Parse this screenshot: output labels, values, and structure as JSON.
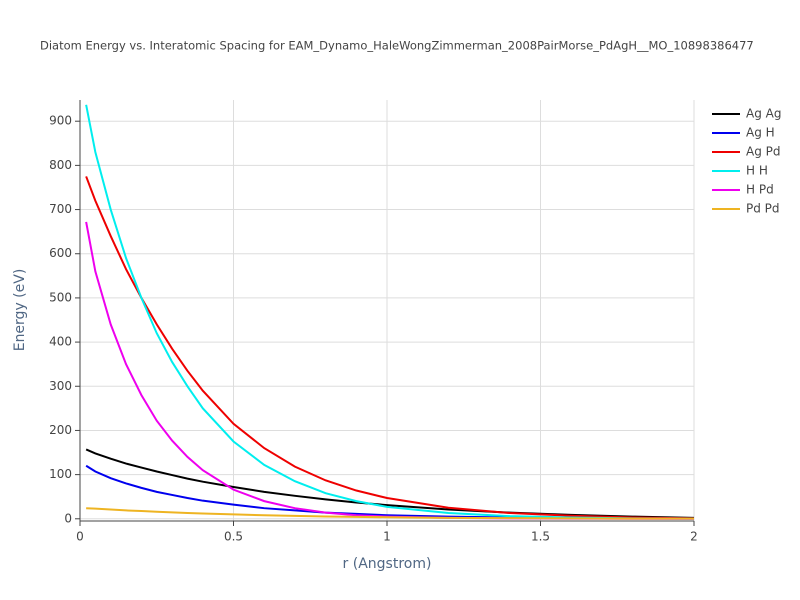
{
  "chart_data": {
    "type": "line",
    "title": "Diatom Energy vs. Interatomic Spacing for EAM_Dynamo_HaleWongZimmerman_2008PairMorse_PdAgH__MO_10898386477",
    "x_label": "r (Angstrom)",
    "y_label": "Energy (eV)",
    "x": [
      0.02,
      0.05,
      0.1,
      0.15,
      0.2,
      0.25,
      0.3,
      0.35,
      0.4,
      0.5,
      0.6,
      0.7,
      0.8,
      0.9,
      1.0,
      1.2,
      1.4,
      1.6,
      1.8,
      2.0
    ],
    "series": [
      {
        "name": "Ag Ag",
        "color": "#000000",
        "values": [
          157,
          148,
          136,
          125,
          116,
          107,
          99,
          91,
          84,
          72,
          61,
          52,
          44,
          37,
          31,
          21,
          14,
          9,
          5,
          2
        ]
      },
      {
        "name": "Ag H",
        "color": "#0000ee",
        "values": [
          120,
          107,
          92,
          80,
          70,
          61,
          54,
          47,
          41,
          32,
          24,
          19,
          14,
          11,
          8,
          5,
          3,
          1.5,
          0.8,
          0.4
        ]
      },
      {
        "name": "Ag Pd",
        "color": "#ee0000",
        "values": [
          775,
          720,
          640,
          565,
          500,
          440,
          385,
          335,
          290,
          215,
          160,
          118,
          87,
          64,
          47,
          25,
          13,
          7,
          3,
          1
        ]
      },
      {
        "name": "H H",
        "color": "#00eeee",
        "values": [
          937,
          830,
          700,
          590,
          500,
          420,
          355,
          300,
          250,
          175,
          122,
          85,
          58,
          40,
          27,
          13,
          6,
          3,
          1,
          0.5
        ]
      },
      {
        "name": "H Pd",
        "color": "#ee00ee",
        "values": [
          672,
          560,
          440,
          350,
          280,
          222,
          177,
          140,
          110,
          66,
          40,
          24,
          14,
          8,
          5,
          2,
          1,
          0.3,
          0.1,
          0
        ]
      },
      {
        "name": "Pd Pd",
        "color": "#eeb422",
        "values": [
          24,
          23,
          21,
          19,
          17.5,
          16,
          14.5,
          13,
          12,
          10,
          8,
          6.5,
          5.3,
          4.3,
          3.5,
          2.2,
          1.4,
          0.9,
          0.5,
          0.3
        ]
      }
    ],
    "xlim": [
      0,
      2
    ],
    "xticks": [
      0,
      0.5,
      1,
      1.5,
      2
    ],
    "ylim": [
      -5,
      948
    ],
    "yticks": [
      0,
      100,
      200,
      300,
      400,
      500,
      600,
      700,
      800,
      900
    ],
    "grid": true,
    "legend": "right"
  }
}
